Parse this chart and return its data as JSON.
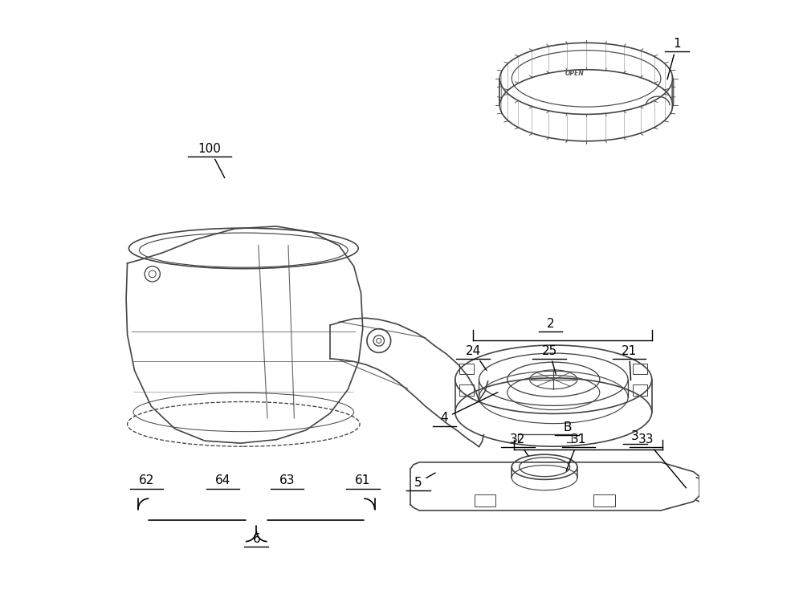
{
  "bg_color": "#ffffff",
  "line_color": "#444444",
  "annotation_color": "#000000",
  "fig_width": 10.0,
  "fig_height": 7.45,
  "dpi": 100
}
